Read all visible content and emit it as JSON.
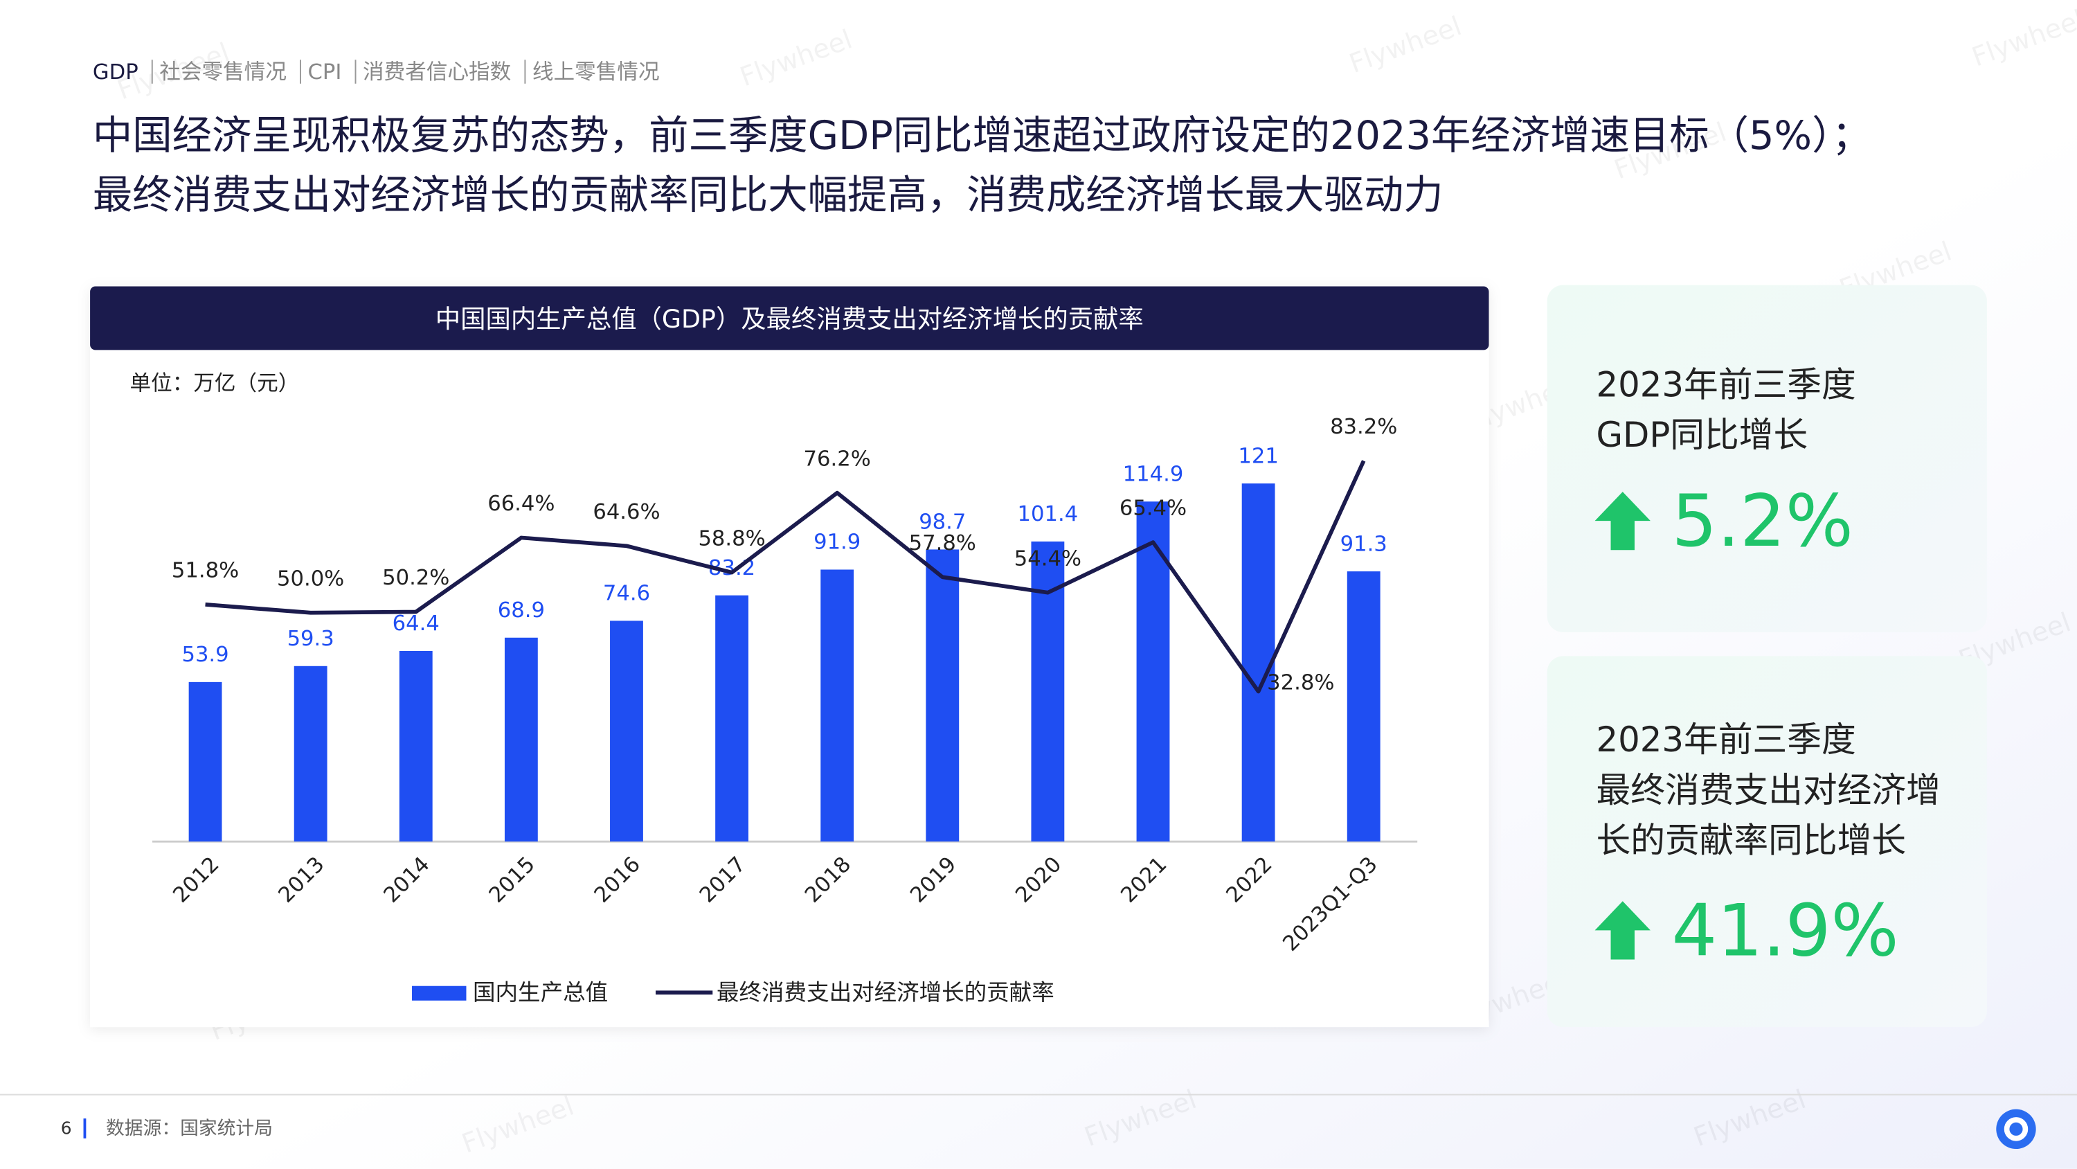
{
  "nav": [
    "GDP",
    "社会零售情况",
    "CPI",
    "消费者信心指数",
    "线上零售情况"
  ],
  "title_lines": [
    "中国经济呈现积极复苏的态势，前三季度GDP同比增速超过政府设定的2023年经济增速目标（5%）；",
    "最终消费支出对经济增长的贡献率同比大幅提高，消费成经济增长最大驱动力"
  ],
  "watermark": "Flywheel",
  "chart_data": {
    "type": "bar",
    "title": "中国国内生产总值（GDP）及最终消费支出对经济增长的贡献率",
    "unit": "单位：万亿（元）",
    "categories": [
      "2012",
      "2013",
      "2014",
      "2015",
      "2016",
      "2017",
      "2018",
      "2019",
      "2020",
      "2021",
      "2022",
      "2023Q1-Q3"
    ],
    "series": [
      {
        "name": "国内生产总值",
        "type": "bar",
        "color": "#1f4ef2",
        "values": [
          53.9,
          59.3,
          64.4,
          68.9,
          74.6,
          83.2,
          91.9,
          98.7,
          101.4,
          114.9,
          121,
          91.3
        ]
      },
      {
        "name": "最终消费支出对经济增长的贡献率",
        "type": "line",
        "axis": "y2",
        "color": "#1b1b4d",
        "values": [
          51.8,
          50.0,
          50.2,
          66.4,
          64.6,
          58.8,
          76.2,
          57.8,
          54.4,
          65.4,
          32.8,
          83.2
        ],
        "value_labels": [
          "51.8%",
          "50.0%",
          "50.2%",
          "66.4%",
          "64.6%",
          "58.8%",
          "76.2%",
          "57.8%",
          "54.4%",
          "65.4%",
          "32.8%",
          "83.2%"
        ]
      }
    ],
    "ylim": [
      0,
      150
    ],
    "y2lim": [
      0,
      97
    ]
  },
  "kpis": [
    {
      "label_lines": [
        "2023年前三季度",
        "GDP同比增长"
      ],
      "value": "5.2%"
    },
    {
      "label_lines": [
        "2023年前三季度",
        "最终消费支出对经济增",
        "长的贡献率同比增长"
      ],
      "value": "41.9%"
    }
  ],
  "footer": {
    "page": "6",
    "source": "数据源：国家统计局"
  }
}
